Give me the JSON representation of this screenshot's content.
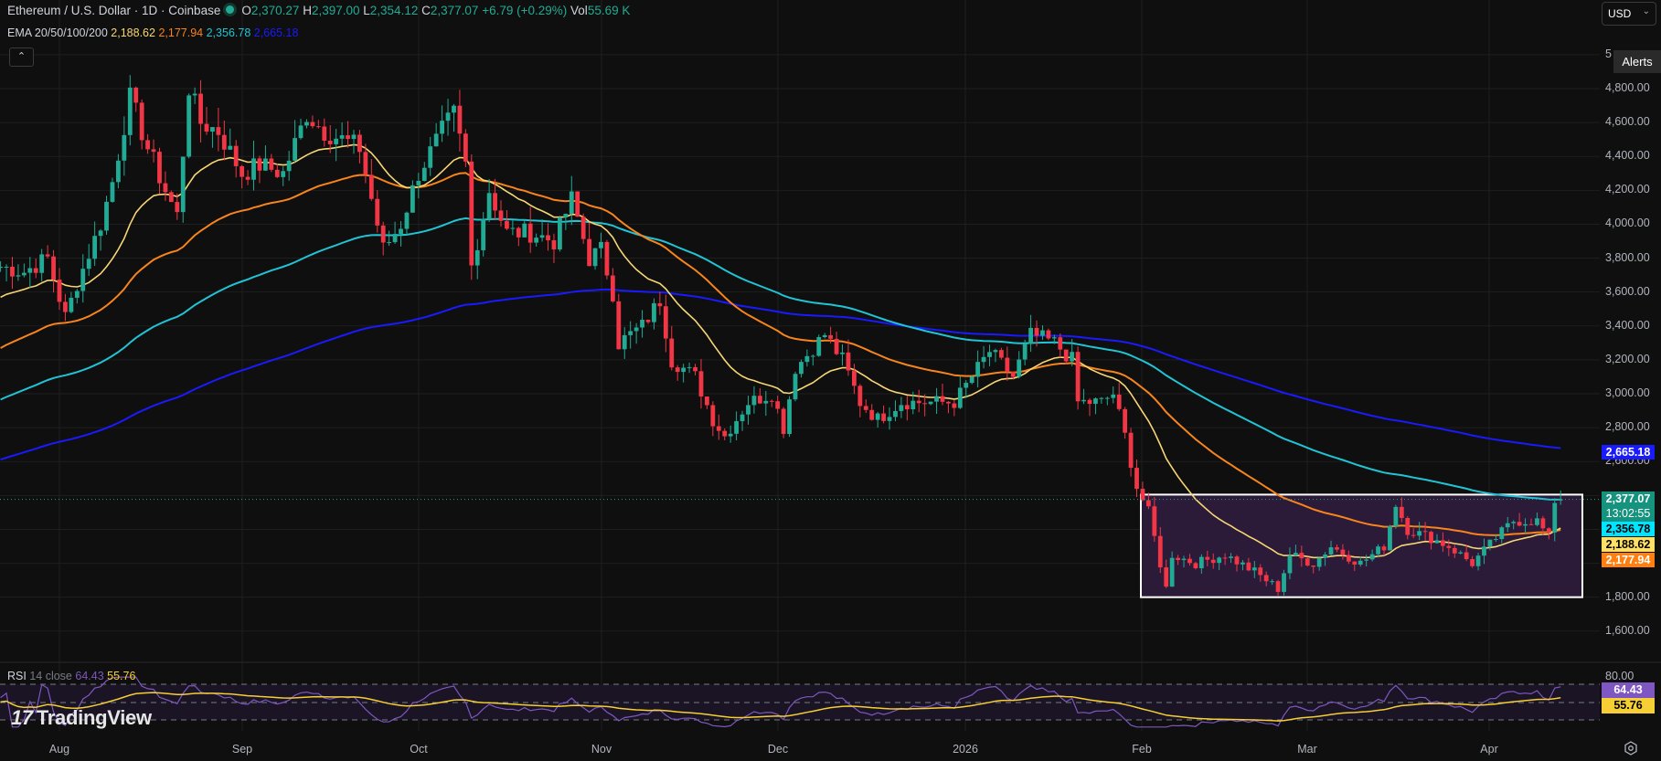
{
  "header": {
    "symbol_title": "Ethereum / U.S. Dollar · 1D · Coinbase",
    "ohlc": {
      "o_label": "O",
      "o": "2,370.27",
      "h_label": "H",
      "h": "2,397.00",
      "l_label": "L",
      "l": "2,354.12",
      "c_label": "C",
      "c": "2,377.07",
      "change": "+6.79 (+0.29%)"
    },
    "volume_label": "Vol",
    "volume": "55.69 K",
    "market_status_icon": "market-open-dot"
  },
  "ema_legend": {
    "label": "EMA 20/50/100/200",
    "values": [
      "2,188.62",
      "2,177.94",
      "2,356.78",
      "2,665.18"
    ]
  },
  "toolbar": {
    "currency": "USD",
    "alerts_label": "Alerts",
    "collapse_icon": "chevron-up"
  },
  "colors": {
    "up": "#22ab94",
    "down": "#f23645",
    "ema20": "#f7d674",
    "ema50": "#f7841c",
    "ema100": "#21c4d4",
    "ema200": "#1a1aff",
    "rsi": "#7e57c2",
    "rsi_ma": "#f5cf33",
    "box_fill": "#2b1a38",
    "box_border": "#ffffff",
    "grid": "#1f1f1f",
    "bg": "#0f0f0f"
  },
  "price_axis": {
    "ticks": [
      "5",
      "4,800.00",
      "4,600.00",
      "4,400.00",
      "4,200.00",
      "4,000.00",
      "3,800.00",
      "3,600.00",
      "3,400.00",
      "3,200.00",
      "3,000.00",
      "2,800.00",
      "2,600.00",
      "1,800.00",
      "1,600.00"
    ],
    "tags": [
      {
        "value": "2,665.18",
        "bg": "#1a1aff",
        "fg": "#ffffff"
      },
      {
        "value": "2,377.07",
        "sub": "13:02:55",
        "bg": "#16937f",
        "fg": "#ffffff"
      },
      {
        "value": "2,356.78",
        "bg": "#00e5ff",
        "fg": "#000000"
      },
      {
        "value": "2,188.62",
        "bg": "#ffe066",
        "fg": "#000000"
      },
      {
        "value": "2,177.94",
        "bg": "#ff7f11",
        "fg": "#ffffff"
      }
    ]
  },
  "time_axis": {
    "labels": [
      "Aug",
      "Sep",
      "Oct",
      "Nov",
      "Dec",
      "2026",
      "Feb",
      "Mar",
      "Apr"
    ]
  },
  "rsi_panel": {
    "label": "RSI",
    "params": "14 close",
    "values": [
      "64.43",
      "55.76"
    ],
    "axis_top": "80.00",
    "tags": [
      {
        "value": "64.43",
        "bg": "#7e57c2",
        "fg": "#ffffff"
      },
      {
        "value": "55.76",
        "bg": "#f5cf33",
        "fg": "#000000"
      }
    ]
  },
  "branding": {
    "logo_text": "TradingView"
  },
  "chart_data": {
    "type": "candlestick",
    "title": "Ethereum / U.S. Dollar · 1D · Coinbase",
    "xlabel": "",
    "ylabel": "USD",
    "ylim": [
      1500,
      5050
    ],
    "grid": true,
    "x_tick_labels": [
      "Aug",
      "Sep",
      "Oct",
      "Nov",
      "Dec",
      "2026",
      "Feb",
      "Mar",
      "Apr"
    ],
    "y_tick_labels": [
      "1,600.00",
      "1,800.00",
      "2,600.00",
      "2,800.00",
      "3,000.00",
      "3,200.00",
      "3,400.00",
      "3,600.00",
      "3,800.00",
      "4,000.00",
      "4,200.00",
      "4,400.00",
      "4,600.00",
      "4,800.00"
    ],
    "last": {
      "open": 2370.27,
      "high": 2397.0,
      "low": 2354.12,
      "close": 2377.07,
      "change": 6.79,
      "change_pct": 0.29,
      "volume": "55.69K"
    },
    "indicators": {
      "EMA20": 2188.62,
      "EMA50": 2177.94,
      "EMA100": 2356.78,
      "EMA200": 2665.18,
      "RSI14": 64.43,
      "RSI_MA": 55.76
    },
    "annotation": {
      "type": "rectangle",
      "from": "late Jan",
      "to": "mid Apr",
      "price_low": 1800,
      "price_high": 2400
    },
    "closes_waypoints": [
      [
        "Jul 22",
        3750
      ],
      [
        "Jul 26",
        3720
      ],
      [
        "Jul 30",
        3800
      ],
      [
        "Aug 2",
        3450
      ],
      [
        "Aug 4",
        3650
      ],
      [
        "Aug 8",
        4000
      ],
      [
        "Aug 10",
        4250
      ],
      [
        "Aug 13",
        4750
      ],
      [
        "Aug 16",
        4450
      ],
      [
        "Aug 19",
        4200
      ],
      [
        "Aug 21",
        4050
      ],
      [
        "Aug 23",
        4800
      ],
      [
        "Aug 25",
        4600
      ],
      [
        "Aug 28",
        4550
      ],
      [
        "Sep 1",
        4300
      ],
      [
        "Sep 4",
        4350
      ],
      [
        "Sep 8",
        4300
      ],
      [
        "Sep 12",
        4650
      ],
      [
        "Sep 15",
        4550
      ],
      [
        "Sep 18",
        4500
      ],
      [
        "Sep 21",
        4450
      ],
      [
        "Sep 23",
        4150
      ],
      [
        "Sep 25",
        3850
      ],
      [
        "Sep 28",
        4000
      ],
      [
        "Oct 1",
        4300
      ],
      [
        "Oct 5",
        4550
      ],
      [
        "Oct 7",
        4650
      ],
      [
        "Oct 9",
        4350
      ],
      [
        "Oct 10",
        3750
      ],
      [
        "Oct 13",
        4200
      ],
      [
        "Oct 16",
        3950
      ],
      [
        "Oct 20",
        3950
      ],
      [
        "Oct 24",
        3900
      ],
      [
        "Oct 27",
        4150
      ],
      [
        "Oct 30",
        3800
      ],
      [
        "Nov 1",
        3850
      ],
      [
        "Nov 3",
        3600
      ],
      [
        "Nov 4",
        3300
      ],
      [
        "Nov 8",
        3400
      ],
      [
        "Nov 11",
        3550
      ],
      [
        "Nov 13",
        3200
      ],
      [
        "Nov 17",
        3100
      ],
      [
        "Nov 20",
        2850
      ],
      [
        "Nov 22",
        2750
      ],
      [
        "Nov 26",
        2950
      ],
      [
        "Nov 30",
        3000
      ],
      [
        "Dec 2",
        2800
      ],
      [
        "Dec 4",
        3150
      ],
      [
        "Dec 9",
        3350
      ],
      [
        "Dec 12",
        3200
      ],
      [
        "Dec 15",
        2950
      ],
      [
        "Dec 18",
        2850
      ],
      [
        "Dec 22",
        2950
      ],
      [
        "Dec 26",
        2950
      ],
      [
        "Dec 31",
        2950
      ],
      [
        "Jan 3",
        3100
      ],
      [
        "Jan 6",
        3250
      ],
      [
        "Jan 10",
        3100
      ],
      [
        "Jan 13",
        3350
      ],
      [
        "Jan 17",
        3300
      ],
      [
        "Jan 20",
        3200
      ],
      [
        "Jan 21",
        2950
      ],
      [
        "Jan 25",
        2950
      ],
      [
        "Jan 27",
        3000
      ],
      [
        "Jan 29",
        2750
      ],
      [
        "Jan 31",
        2450
      ],
      [
        "Feb 2",
        2300
      ],
      [
        "Feb 5",
        1850
      ],
      [
        "Feb 6",
        2050
      ],
      [
        "Feb 10",
        2000
      ],
      [
        "Feb 15",
        2050
      ],
      [
        "Feb 20",
        1950
      ],
      [
        "Feb 24",
        1850
      ],
      [
        "Feb 26",
        2050
      ],
      [
        "Mar 2",
        2000
      ],
      [
        "Mar 5",
        2100
      ],
      [
        "Mar 10",
        2000
      ],
      [
        "Mar 14",
        2100
      ],
      [
        "Mar 16",
        2350
      ],
      [
        "Mar 18",
        2200
      ],
      [
        "Mar 22",
        2150
      ],
      [
        "Mar 25",
        2100
      ],
      [
        "Mar 29",
        2000
      ],
      [
        "Apr 2",
        2150
      ],
      [
        "Apr 5",
        2250
      ],
      [
        "Apr 9",
        2250
      ],
      [
        "Apr 11",
        2150
      ],
      [
        "Apr 12",
        2370
      ],
      [
        "Apr 13",
        2377.07
      ]
    ]
  }
}
